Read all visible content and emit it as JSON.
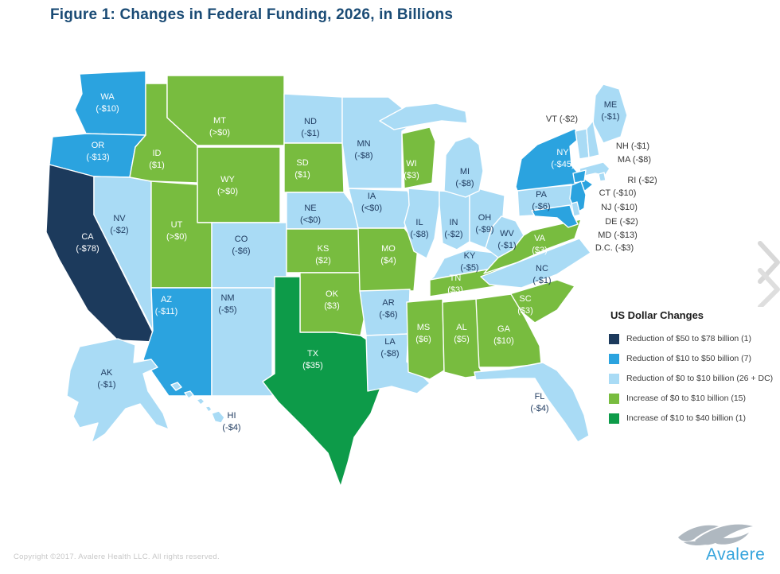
{
  "title": "Figure 1: Changes in Federal Funding, 2026, in Billions",
  "legend": {
    "title": "US Dollar Changes",
    "items": [
      {
        "label": "Reduction of $50 to $78 billion (1)",
        "color": "#1C3A5C"
      },
      {
        "label": "Reduction of $10 to $50 billion (7)",
        "color": "#2BA3DF"
      },
      {
        "label": "Reduction of $0 to $10 billion (26 + DC)",
        "color": "#A9DBF5"
      },
      {
        "label": "Increase of $0 to $10 billion (15)",
        "color": "#78BC3F"
      },
      {
        "label": "Increase of $10 to $40 billion (1)",
        "color": "#0D9B49"
      }
    ]
  },
  "footer": {
    "text": "Copyright ©2017. Avalere Health LLC. All rights reserved."
  },
  "logo": {
    "text": "Avalere",
    "text_color": "#35A4DC",
    "swoosh_color": "#AFB8C0"
  },
  "chart_data": {
    "type": "choropleth-map",
    "title": "Figure 1: Changes in Federal Funding, 2026, in Billions",
    "region": "United States",
    "unit": "billions of US dollars",
    "year_shown": "2026",
    "category_colors": {
      "reduction-50-78": "#1C3A5C",
      "reduction-10-50": "#2BA3DF",
      "reduction-0-10": "#A9DBF5",
      "increase-0-10": "#78BC3F",
      "increase-10-40": "#0D9B49"
    },
    "category_labels": {
      "reduction-50-78": "Reduction of $50 to $78 billion (1)",
      "reduction-10-50": "Reduction of $10 to $50 billion (7)",
      "reduction-0-10": "Reduction of $0 to $10 billion (26 + DC)",
      "increase-0-10": "Increase of $0 to $10 billion (15)",
      "increase-10-40": "Increase of $10 to $40 billion (1)"
    },
    "states": [
      {
        "abbr": "WA",
        "value": "(-$10)",
        "category": "reduction-10-50"
      },
      {
        "abbr": "OR",
        "value": "(-$13)",
        "category": "reduction-10-50"
      },
      {
        "abbr": "CA",
        "value": "(-$78)",
        "category": "reduction-50-78"
      },
      {
        "abbr": "NV",
        "value": "(-$2)",
        "category": "reduction-0-10"
      },
      {
        "abbr": "ID",
        "value": "($1)",
        "category": "increase-0-10"
      },
      {
        "abbr": "MT",
        "value": "(>$0)",
        "category": "increase-0-10"
      },
      {
        "abbr": "WY",
        "value": "(>$0)",
        "category": "increase-0-10"
      },
      {
        "abbr": "UT",
        "value": "(>$0)",
        "category": "increase-0-10"
      },
      {
        "abbr": "CO",
        "value": "(-$6)",
        "category": "reduction-0-10"
      },
      {
        "abbr": "AZ",
        "value": "(-$11)",
        "category": "reduction-10-50"
      },
      {
        "abbr": "NM",
        "value": "(-$5)",
        "category": "reduction-0-10"
      },
      {
        "abbr": "ND",
        "value": "(-$1)",
        "category": "reduction-0-10"
      },
      {
        "abbr": "SD",
        "value": "($1)",
        "category": "increase-0-10"
      },
      {
        "abbr": "NE",
        "value": "(<$0)",
        "category": "reduction-0-10"
      },
      {
        "abbr": "KS",
        "value": "($2)",
        "category": "increase-0-10"
      },
      {
        "abbr": "OK",
        "value": "($3)",
        "category": "increase-0-10"
      },
      {
        "abbr": "TX",
        "value": "($35)",
        "category": "increase-10-40"
      },
      {
        "abbr": "MN",
        "value": "(-$8)",
        "category": "reduction-0-10"
      },
      {
        "abbr": "IA",
        "value": "(<$0)",
        "category": "reduction-0-10"
      },
      {
        "abbr": "MO",
        "value": "($4)",
        "category": "increase-0-10"
      },
      {
        "abbr": "AR",
        "value": "(-$6)",
        "category": "reduction-0-10"
      },
      {
        "abbr": "LA",
        "value": "(-$8)",
        "category": "reduction-0-10"
      },
      {
        "abbr": "WI",
        "value": "($3)",
        "category": "increase-0-10"
      },
      {
        "abbr": "IL",
        "value": "(-$8)",
        "category": "reduction-0-10"
      },
      {
        "abbr": "IN",
        "value": "(-$2)",
        "category": "reduction-0-10"
      },
      {
        "abbr": "OH",
        "value": "(-$9)",
        "category": "reduction-0-10"
      },
      {
        "abbr": "MI",
        "value": "(-$8)",
        "category": "reduction-0-10"
      },
      {
        "abbr": "KY",
        "value": "(-$5)",
        "category": "reduction-0-10"
      },
      {
        "abbr": "TN",
        "value": "($3)",
        "category": "increase-0-10"
      },
      {
        "abbr": "WV",
        "value": "(-$1)",
        "category": "reduction-0-10"
      },
      {
        "abbr": "VA",
        "value": "($3)",
        "category": "increase-0-10"
      },
      {
        "abbr": "NC",
        "value": "(-$1)",
        "category": "reduction-0-10"
      },
      {
        "abbr": "SC",
        "value": "($3)",
        "category": "increase-0-10"
      },
      {
        "abbr": "GA",
        "value": "($10)",
        "category": "increase-0-10"
      },
      {
        "abbr": "MS",
        "value": "($6)",
        "category": "increase-0-10"
      },
      {
        "abbr": "AL",
        "value": "($5)",
        "category": "increase-0-10"
      },
      {
        "abbr": "FL",
        "value": "(-$4)",
        "category": "reduction-0-10"
      },
      {
        "abbr": "PA",
        "value": "(-$6)",
        "category": "reduction-0-10"
      },
      {
        "abbr": "NY",
        "value": "(-$45)",
        "category": "reduction-10-50"
      },
      {
        "abbr": "ME",
        "value": "(-$1)",
        "category": "reduction-0-10"
      },
      {
        "abbr": "VT",
        "value": "(-$2)",
        "category": "reduction-0-10",
        "outside_label": true
      },
      {
        "abbr": "NH",
        "value": "(-$1)",
        "category": "reduction-0-10",
        "outside_label": true
      },
      {
        "abbr": "MA",
        "value": "(-$8)",
        "category": "reduction-0-10",
        "outside_label": true
      },
      {
        "abbr": "RI",
        "value": "(-$2)",
        "category": "reduction-0-10",
        "outside_label": true
      },
      {
        "abbr": "CT",
        "value": "(-$10)",
        "category": "reduction-10-50",
        "outside_label": true
      },
      {
        "abbr": "NJ",
        "value": "(-$10)",
        "category": "reduction-10-50",
        "outside_label": true
      },
      {
        "abbr": "DE",
        "value": "(-$2)",
        "category": "reduction-0-10",
        "outside_label": true
      },
      {
        "abbr": "MD",
        "value": "(-$13)",
        "category": "reduction-10-50",
        "outside_label": true
      },
      {
        "abbr": "DC",
        "display": "D.C.",
        "value": "(-$3)",
        "category": "reduction-0-10",
        "outside_label": true
      },
      {
        "abbr": "AK",
        "value": "(-$1)",
        "category": "reduction-0-10"
      },
      {
        "abbr": "HI",
        "value": "(-$4)",
        "category": "reduction-0-10"
      }
    ]
  }
}
